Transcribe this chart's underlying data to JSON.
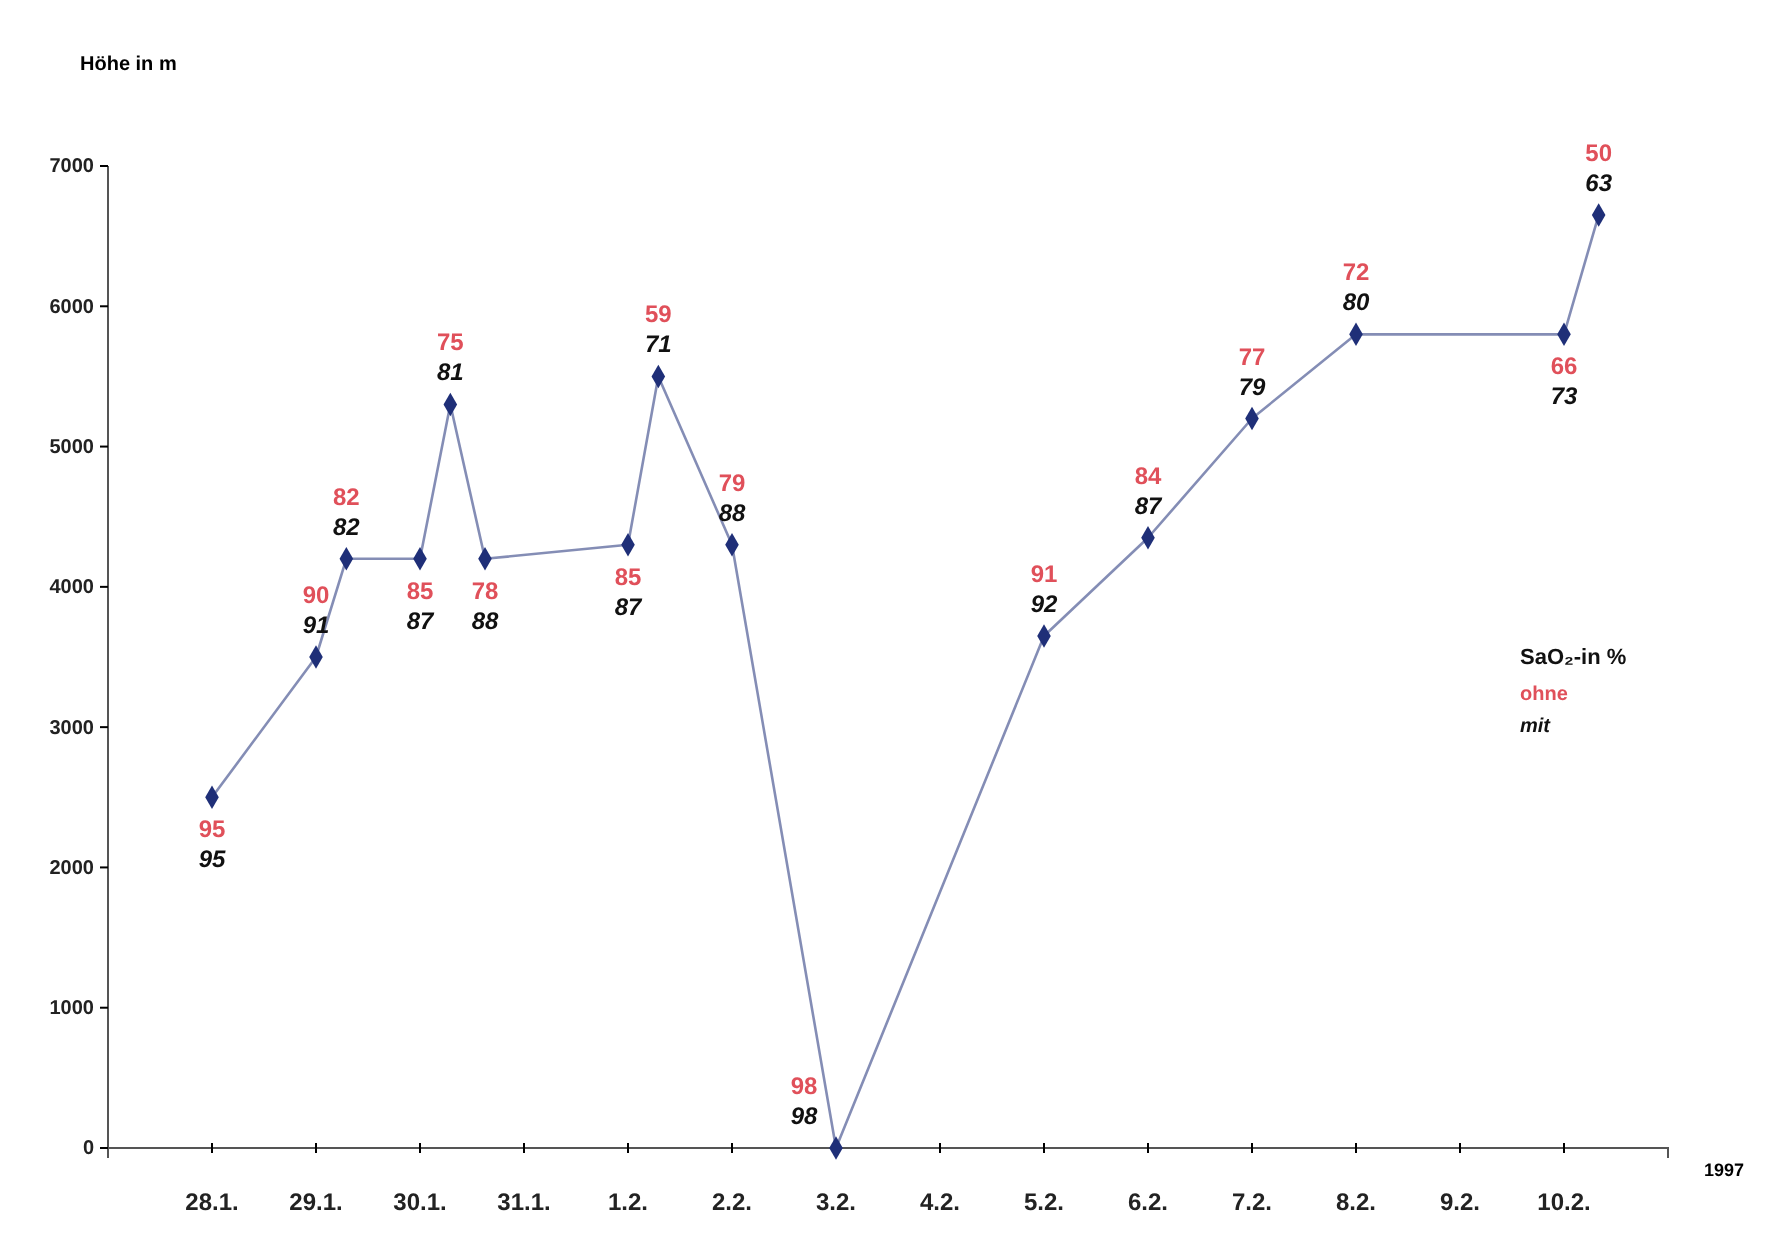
{
  "chart_data": {
    "type": "line",
    "ylabel": "Höhe in m",
    "xlabel": "1997",
    "marker": "diamond",
    "grid": false,
    "x": [
      "1997-01-28",
      "1997-01-29",
      "1997-01-29T07:00",
      "1997-01-30",
      "1997-01-30T07:00",
      "1997-01-30T15:00",
      "1997-02-01",
      "1997-02-01T07:00",
      "1997-02-02",
      "1997-02-03",
      "1997-02-05",
      "1997-02-06",
      "1997-02-07",
      "1997-02-08",
      "1997-02-10",
      "1997-02-10T08:00"
    ],
    "series": [
      {
        "color": "#1f2f78",
        "values": [
          2500,
          3500,
          4200,
          4200,
          5300,
          4200,
          4300,
          5500,
          4300,
          0,
          3650,
          4350,
          5200,
          5800,
          5800,
          6650
        ]
      }
    ],
    "xlim": [
      "1997-01-27",
      "1997-02-11"
    ],
    "xticks": [
      {
        "value": "1997-01-28",
        "label": "28.1."
      },
      {
        "value": "1997-01-29",
        "label": "29.1."
      },
      {
        "value": "1997-01-30",
        "label": "30.1."
      },
      {
        "value": "1997-01-31",
        "label": "31.1."
      },
      {
        "value": "1997-02-01",
        "label": "1.2."
      },
      {
        "value": "1997-02-02",
        "label": "2.2."
      },
      {
        "value": "1997-02-03",
        "label": "3.2."
      },
      {
        "value": "1997-02-04",
        "label": "4.2."
      },
      {
        "value": "1997-02-05",
        "label": "5.2."
      },
      {
        "value": "1997-02-06",
        "label": "6.2."
      },
      {
        "value": "1997-02-07",
        "label": "7.2."
      },
      {
        "value": "1997-02-08",
        "label": "8.2."
      },
      {
        "value": "1997-02-09",
        "label": "9.2."
      },
      {
        "value": "1997-02-10",
        "label": "10.2."
      }
    ],
    "ylim": [
      0,
      7000
    ],
    "yticks": [
      0,
      1000,
      2000,
      3000,
      4000,
      5000,
      6000,
      7000
    ],
    "annotations": [
      {
        "text": "95",
        "x": "1997-01-28",
        "y": 2500
      },
      {
        "text": "95",
        "x": "1997-01-28",
        "y": 2500
      },
      {
        "text": "90",
        "x": "1997-01-29",
        "y": 3500
      },
      {
        "text": "91",
        "x": "1997-01-29",
        "y": 3500
      },
      {
        "text": "82",
        "x": "1997-01-29T07:00",
        "y": 4200
      },
      {
        "text": "82",
        "x": "1997-01-29T07:00",
        "y": 4200
      },
      {
        "text": "85",
        "x": "1997-01-30",
        "y": 4200
      },
      {
        "text": "87",
        "x": "1997-01-30",
        "y": 4200
      },
      {
        "text": "75",
        "x": "1997-01-30T07:00",
        "y": 5300
      },
      {
        "text": "81",
        "x": "1997-01-30T07:00",
        "y": 5300
      },
      {
        "text": "78",
        "x": "1997-01-30T15:00",
        "y": 4200
      },
      {
        "text": "88",
        "x": "1997-01-30T15:00",
        "y": 4200
      },
      {
        "text": "85",
        "x": "1997-02-01",
        "y": 4300
      },
      {
        "text": "87",
        "x": "1997-02-01",
        "y": 4300
      },
      {
        "text": "59",
        "x": "1997-02-01T07:00",
        "y": 5500
      },
      {
        "text": "71",
        "x": "1997-02-01T07:00",
        "y": 5500
      },
      {
        "text": "79",
        "x": "1997-02-02",
        "y": 4300
      },
      {
        "text": "88",
        "x": "1997-02-02",
        "y": 4300
      },
      {
        "text": "98",
        "x": "1997-02-03",
        "y": 0
      },
      {
        "text": "98",
        "x": "1997-02-03",
        "y": 0
      },
      {
        "text": "91",
        "x": "1997-02-05",
        "y": 3650
      },
      {
        "text": "92",
        "x": "1997-02-05",
        "y": 3650
      },
      {
        "text": "84",
        "x": "1997-02-06",
        "y": 4350
      },
      {
        "text": "87",
        "x": "1997-02-06",
        "y": 4350
      },
      {
        "text": "77",
        "x": "1997-02-07",
        "y": 5200
      },
      {
        "text": "79",
        "x": "1997-02-07",
        "y": 5200
      },
      {
        "text": "72",
        "x": "1997-02-08",
        "y": 5800
      },
      {
        "text": "80",
        "x": "1997-02-08",
        "y": 5800
      },
      {
        "text": "66",
        "x": "1997-02-10",
        "y": 5800
      },
      {
        "text": "73",
        "x": "1997-02-10",
        "y": 5800
      },
      {
        "text": "50",
        "x": "1997-02-10T08:00",
        "y": 6650
      },
      {
        "text": "63",
        "x": "1997-02-10T08:00",
        "y": 6650
      },
      "SaO₂-in %",
      "ohne",
      "mit"
    ]
  }
}
